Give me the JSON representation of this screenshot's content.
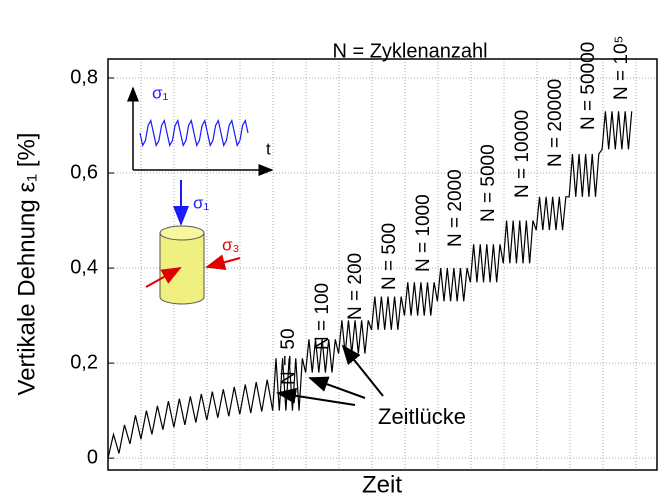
{
  "chart_data": {
    "type": "line",
    "title": "N = Zyklenanzahl",
    "x_label": "Zeit",
    "y_label": "Vertikale Dehnung ε₁ [%]",
    "xlim": [
      0,
      100
    ],
    "ylim": [
      -0.025,
      0.84
    ],
    "yticks": [
      0,
      {
        "value": 0.2,
        "label": "0,2"
      },
      {
        "value": 0.4,
        "label": "0,4"
      },
      {
        "value": 0.6,
        "label": "0,6"
      },
      {
        "value": 0.8,
        "label": "0,8"
      }
    ],
    "grid": true,
    "series": [
      {
        "color": "#000000",
        "x": [
          0,
          1,
          2,
          3,
          4,
          5,
          6,
          7,
          8,
          9,
          10,
          11,
          12,
          13,
          14,
          15,
          16,
          17,
          18,
          19,
          20,
          21,
          22,
          23,
          24,
          25,
          26,
          27,
          28,
          29,
          30,
          30.6,
          31.2,
          31.8,
          32.4,
          33,
          33.6,
          34.2,
          34.8,
          35.4,
          36,
          36.6,
          37.2,
          37.8,
          38.4,
          39,
          39.6,
          40.2,
          40.8,
          41.4,
          42,
          42.6,
          43.2,
          43.8,
          44.4,
          45,
          45.6,
          46.2,
          46.8,
          47.4,
          48,
          48.6,
          49.2,
          49.8,
          50.4,
          51,
          51.6,
          52.2,
          52.8,
          53.4,
          54,
          54.6,
          55.2,
          55.8,
          56.4,
          57,
          57.6,
          58.2,
          58.8,
          59.4,
          60,
          60.6,
          61.2,
          61.8,
          62.4,
          63,
          63.6,
          64.2,
          64.8,
          65.4,
          66,
          66.6,
          67.2,
          67.8,
          68.4,
          69,
          69.6,
          70.2,
          70.8,
          71.4,
          72,
          72.6,
          73.2,
          73.8,
          74.4,
          75,
          75.6,
          76.2,
          76.8,
          77.4,
          78,
          78.6,
          79.2,
          79.8,
          80.4,
          81,
          81.6,
          82.2,
          82.8,
          83.4,
          84,
          84.6,
          85.2,
          85.8,
          86.4,
          87,
          87.6,
          88.2,
          88.8,
          89.4,
          90,
          90.6,
          91.2,
          91.8,
          92.4,
          93,
          93.6,
          94.2,
          94.8,
          95.4
        ],
        "values": [
          0,
          0.05,
          0.01,
          0.07,
          0.03,
          0.09,
          0.04,
          0.1,
          0.05,
          0.11,
          0.06,
          0.12,
          0.065,
          0.125,
          0.07,
          0.13,
          0.075,
          0.135,
          0.08,
          0.14,
          0.085,
          0.145,
          0.088,
          0.15,
          0.092,
          0.155,
          0.095,
          0.16,
          0.098,
          0.165,
          0.1,
          0.21,
          0.1,
          0.21,
          0.1,
          0.21,
          0.1,
          0.21,
          0.1,
          0.21,
          0.18,
          0.25,
          0.18,
          0.25,
          0.18,
          0.25,
          0.18,
          0.25,
          0.18,
          0.25,
          0.22,
          0.29,
          0.22,
          0.29,
          0.22,
          0.29,
          0.22,
          0.29,
          0.22,
          0.29,
          0.27,
          0.34,
          0.27,
          0.34,
          0.27,
          0.34,
          0.27,
          0.34,
          0.27,
          0.34,
          0.3,
          0.37,
          0.3,
          0.37,
          0.3,
          0.37,
          0.3,
          0.37,
          0.3,
          0.37,
          0.33,
          0.4,
          0.33,
          0.4,
          0.33,
          0.4,
          0.33,
          0.4,
          0.33,
          0.4,
          0.37,
          0.45,
          0.37,
          0.45,
          0.37,
          0.45,
          0.37,
          0.45,
          0.37,
          0.45,
          0.41,
          0.5,
          0.41,
          0.5,
          0.41,
          0.5,
          0.41,
          0.5,
          0.41,
          0.5,
          0.48,
          0.55,
          0.48,
          0.55,
          0.48,
          0.55,
          0.48,
          0.55,
          0.48,
          0.55,
          0.55,
          0.64,
          0.55,
          0.64,
          0.55,
          0.64,
          0.55,
          0.64,
          0.55,
          0.64,
          0.65,
          0.73,
          0.65,
          0.73,
          0.65,
          0.73,
          0.65,
          0.73,
          0.65,
          0.73
        ]
      }
    ],
    "annotations": [
      "N = 50",
      "N = 100",
      "N = 200",
      "N = 500",
      "N = 1000",
      "N = 2000",
      "N = 5000",
      "N = 10000",
      "N = 20000",
      "N = 50000",
      "N = 10⁵",
      "Zeitlücke"
    ],
    "inset_labels": [
      "σ₁",
      "t",
      "σ₁",
      "σ₃"
    ]
  }
}
